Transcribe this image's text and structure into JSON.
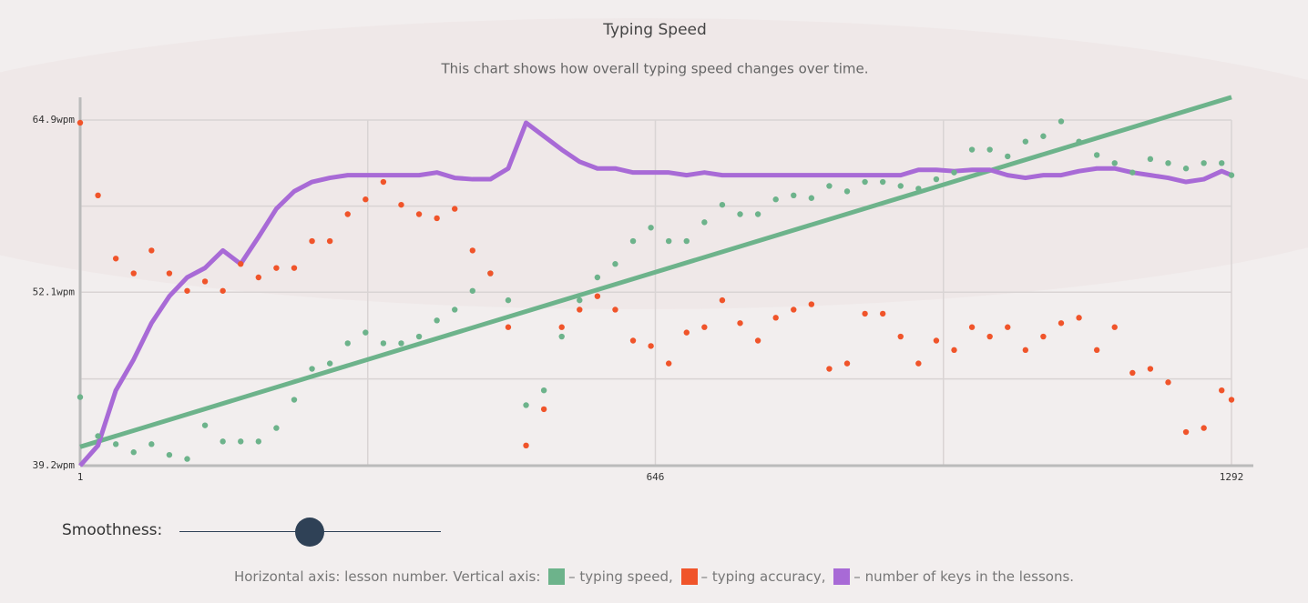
{
  "chart_data": {
    "type": "scatter",
    "title": "Typing Speed",
    "subtitle": "This chart shows how overall typing speed changes over time.",
    "legend_intro": "Horizontal axis: lesson number. Vertical axis:",
    "slider_label": "Smoothness:",
    "xlim": [
      1,
      1292
    ],
    "xticks": [
      1,
      646,
      1292
    ],
    "ylim": [
      39.2,
      64.9
    ],
    "yticks": [
      {
        "value": 39.2,
        "label": "39.2wpm"
      },
      {
        "value": 52.1,
        "label": "52.1wpm"
      },
      {
        "value": 64.9,
        "label": "64.9wpm"
      }
    ],
    "grid": true,
    "x": [
      1,
      21,
      41,
      61,
      81,
      101,
      121,
      141,
      161,
      181,
      201,
      221,
      241,
      261,
      281,
      301,
      321,
      341,
      361,
      381,
      401,
      421,
      441,
      461,
      481,
      501,
      521,
      541,
      561,
      581,
      601,
      621,
      641,
      661,
      681,
      701,
      721,
      741,
      761,
      781,
      801,
      821,
      841,
      861,
      881,
      901,
      921,
      941,
      961,
      981,
      1001,
      1021,
      1041,
      1061,
      1081,
      1101,
      1121,
      1141,
      1161,
      1181,
      1201,
      1221,
      1241,
      1261,
      1281,
      1292
    ],
    "series": [
      {
        "name": "– typing speed,",
        "color": "#6db38b",
        "mark": "dots",
        "values": [
          44.3,
          41.4,
          40.8,
          40.2,
          40.8,
          40.0,
          39.7,
          42.2,
          41.0,
          41.0,
          41.0,
          42.0,
          44.1,
          46.4,
          46.8,
          48.3,
          49.1,
          48.3,
          48.3,
          48.8,
          50.0,
          50.8,
          52.2,
          53.5,
          51.5,
          43.7,
          44.8,
          48.8,
          51.5,
          53.2,
          54.2,
          55.9,
          56.9,
          55.9,
          55.9,
          57.3,
          58.6,
          57.9,
          57.9,
          59.0,
          59.3,
          59.1,
          60.0,
          59.6,
          60.3,
          60.3,
          60.0,
          59.8,
          60.5,
          61.0,
          62.7,
          62.7,
          62.2,
          63.3,
          63.7,
          64.8,
          63.3,
          62.3,
          61.7,
          61.0,
          62.0,
          61.7,
          61.3,
          61.7,
          61.7,
          60.8
        ]
      },
      {
        "name": "– typing accuracy,",
        "color": "#f0542a",
        "mark": "dots",
        "values": [
          64.7,
          59.3,
          54.6,
          53.5,
          55.2,
          53.5,
          52.2,
          52.9,
          52.2,
          54.2,
          53.2,
          53.9,
          53.9,
          55.9,
          55.9,
          57.9,
          59.0,
          60.3,
          58.6,
          57.9,
          57.6,
          58.3,
          55.2,
          53.5,
          49.5,
          40.7,
          43.4,
          49.5,
          50.8,
          51.8,
          50.8,
          48.5,
          48.1,
          46.8,
          49.1,
          49.5,
          51.5,
          49.8,
          48.5,
          50.2,
          50.8,
          51.2,
          46.4,
          46.8,
          50.5,
          50.5,
          48.8,
          46.8,
          48.5,
          47.8,
          49.5,
          48.8,
          49.5,
          47.8,
          48.8,
          49.8,
          50.2,
          47.8,
          49.5,
          46.1,
          46.4,
          45.4,
          41.7,
          42.0,
          44.8,
          44.1
        ]
      },
      {
        "name": "– number of keys in the lessons.",
        "color": "#a86ad6",
        "mark": "line",
        "values": [
          39.2,
          40.7,
          44.8,
          47.1,
          49.8,
          51.8,
          53.2,
          53.9,
          55.2,
          54.2,
          56.2,
          58.3,
          59.6,
          60.3,
          60.6,
          60.8,
          60.8,
          60.8,
          60.8,
          60.8,
          61.0,
          60.6,
          60.5,
          60.5,
          61.3,
          64.7,
          63.7,
          62.7,
          61.8,
          61.3,
          61.3,
          61.0,
          61.0,
          61.0,
          60.8,
          61.0,
          60.8,
          60.8,
          60.8,
          60.8,
          60.8,
          60.8,
          60.8,
          60.8,
          60.8,
          60.8,
          60.8,
          61.2,
          61.2,
          61.1,
          61.2,
          61.2,
          60.8,
          60.6,
          60.8,
          60.8,
          61.1,
          61.3,
          61.3,
          61.0,
          60.8,
          60.6,
          60.3,
          60.5,
          61.1,
          60.8
        ]
      }
    ],
    "trend_line": {
      "x": [
        1,
        1292
      ],
      "values": [
        40.6,
        66.6
      ],
      "color": "#6db38b"
    }
  }
}
